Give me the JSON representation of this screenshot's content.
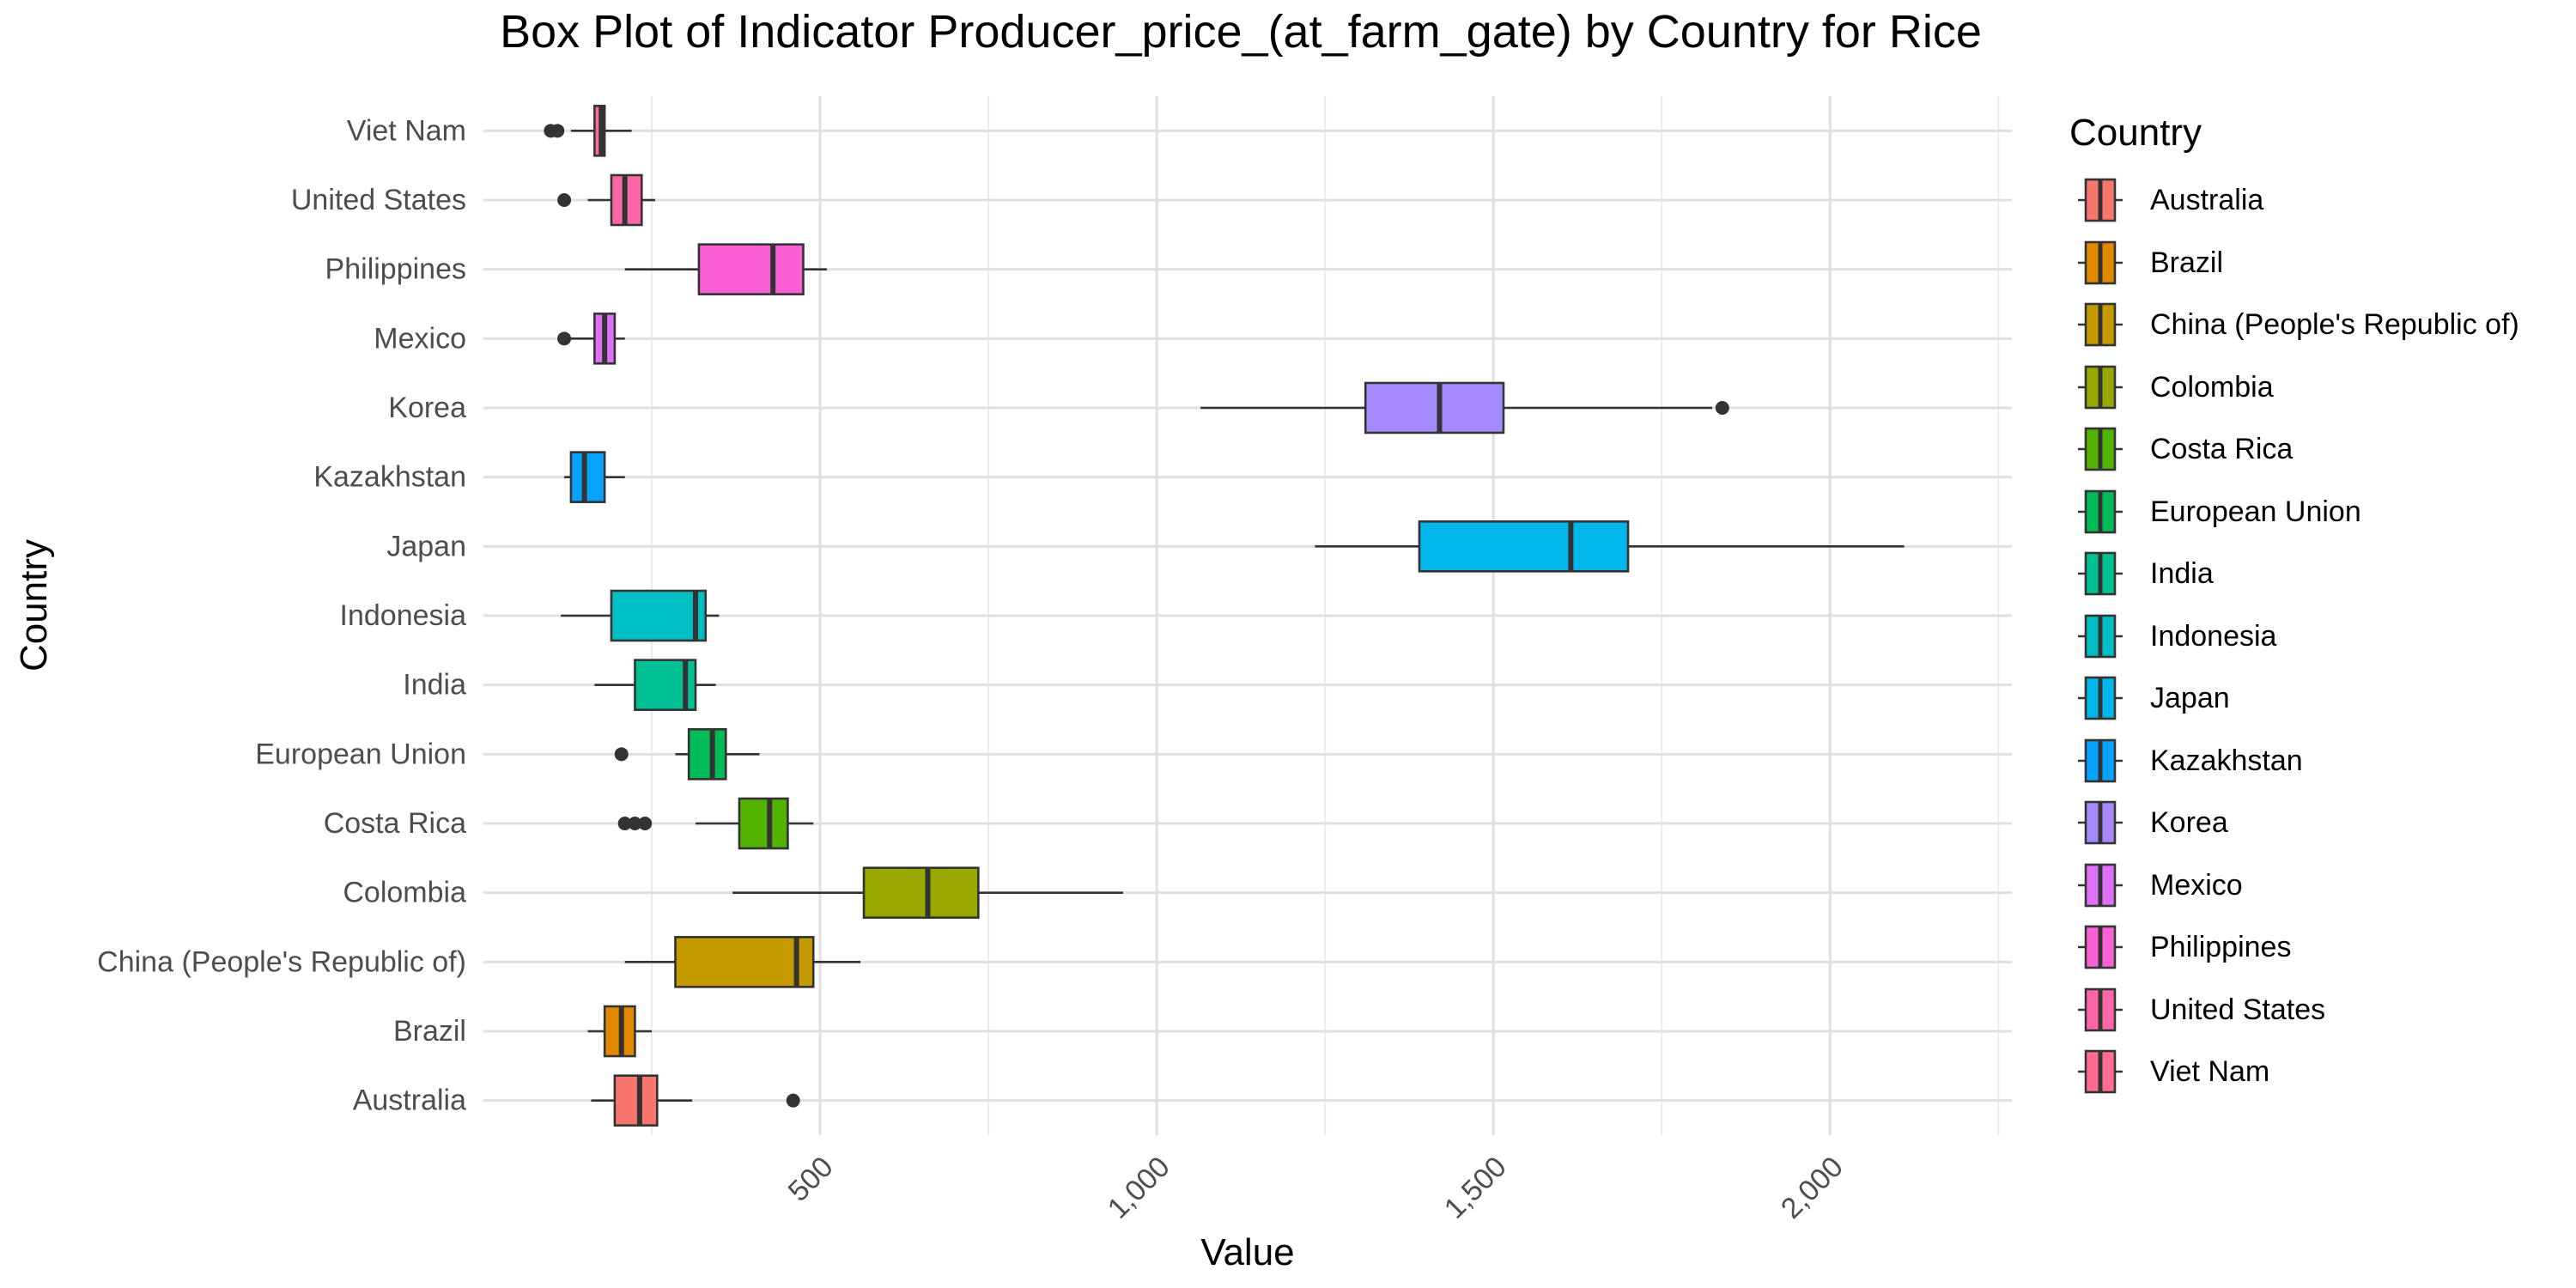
{
  "chart_data": {
    "type": "box",
    "title": "Box Plot of Indicator Producer_price_(at_farm_gate) by Country for Rice",
    "xlabel": "Value",
    "ylabel": "Country",
    "xlim": [
      0,
      2270
    ],
    "xticks": [
      500,
      1000,
      1500,
      2000
    ],
    "xtick_labels": [
      "500",
      "1,000",
      "1,500",
      "2,000"
    ],
    "grid": true,
    "legend": {
      "title": "Country",
      "position": "right",
      "items": [
        "Australia",
        "Brazil",
        "China (People's Republic of)",
        "Colombia",
        "Costa Rica",
        "European Union",
        "India",
        "Indonesia",
        "Japan",
        "Kazakhstan",
        "Korea",
        "Mexico",
        "Philippines",
        "United States",
        "Viet Nam"
      ]
    },
    "categories": [
      "Australia",
      "Brazil",
      "China (People's Republic of)",
      "Colombia",
      "Costa Rica",
      "European Union",
      "India",
      "Indonesia",
      "Japan",
      "Kazakhstan",
      "Korea",
      "Mexico",
      "Philippines",
      "United States",
      "Viet Nam"
    ],
    "series": [
      {
        "category": "Australia",
        "color": "#F8766D",
        "whisker_low": 160,
        "q1": 195,
        "median": 232,
        "q3": 258,
        "whisker_high": 310,
        "outliers": [
          460
        ]
      },
      {
        "category": "Brazil",
        "color": "#E38900",
        "whisker_low": 155,
        "q1": 180,
        "median": 205,
        "q3": 225,
        "whisker_high": 250,
        "outliers": []
      },
      {
        "category": "China (People's Republic of)",
        "color": "#C49A00",
        "whisker_low": 210,
        "q1": 285,
        "median": 465,
        "q3": 490,
        "whisker_high": 560,
        "outliers": []
      },
      {
        "category": "Colombia",
        "color": "#99A800",
        "whisker_low": 370,
        "q1": 565,
        "median": 660,
        "q3": 735,
        "whisker_high": 950,
        "outliers": []
      },
      {
        "category": "Costa Rica",
        "color": "#53B400",
        "whisker_low": 315,
        "q1": 380,
        "median": 425,
        "q3": 452,
        "whisker_high": 490,
        "outliers": [
          210,
          225,
          240
        ]
      },
      {
        "category": "European Union",
        "color": "#00BC56",
        "whisker_low": 285,
        "q1": 305,
        "median": 340,
        "q3": 360,
        "whisker_high": 410,
        "outliers": [
          205
        ]
      },
      {
        "category": "India",
        "color": "#00C094",
        "whisker_low": 165,
        "q1": 225,
        "median": 300,
        "q3": 315,
        "whisker_high": 345,
        "outliers": []
      },
      {
        "category": "Indonesia",
        "color": "#00BFC4",
        "whisker_low": 115,
        "q1": 190,
        "median": 315,
        "q3": 330,
        "whisker_high": 350,
        "outliers": []
      },
      {
        "category": "Japan",
        "color": "#00B6EB",
        "whisker_low": 1235,
        "q1": 1390,
        "median": 1615,
        "q3": 1700,
        "whisker_high": 2110,
        "outliers": []
      },
      {
        "category": "Kazakhstan",
        "color": "#06A4FF",
        "whisker_low": 120,
        "q1": 130,
        "median": 150,
        "q3": 180,
        "whisker_high": 210,
        "outliers": []
      },
      {
        "category": "Korea",
        "color": "#A58AFF",
        "whisker_low": 1065,
        "q1": 1310,
        "median": 1420,
        "q3": 1515,
        "whisker_high": 1825,
        "outliers": [
          1840
        ]
      },
      {
        "category": "Mexico",
        "color": "#DF70F8",
        "whisker_low": 130,
        "q1": 165,
        "median": 180,
        "q3": 195,
        "whisker_high": 210,
        "outliers": [
          120
        ]
      },
      {
        "category": "Philippines",
        "color": "#FB61D7",
        "whisker_low": 210,
        "q1": 320,
        "median": 430,
        "q3": 475,
        "whisker_high": 510,
        "outliers": []
      },
      {
        "category": "United States",
        "color": "#FF66A8",
        "whisker_low": 155,
        "q1": 190,
        "median": 210,
        "q3": 235,
        "whisker_high": 255,
        "outliers": [
          120
        ]
      },
      {
        "category": "Viet Nam",
        "color": "#FF6C91",
        "whisker_low": 130,
        "q1": 165,
        "median": 175,
        "q3": 180,
        "whisker_high": 220,
        "outliers": [
          100,
          110
        ]
      }
    ]
  }
}
